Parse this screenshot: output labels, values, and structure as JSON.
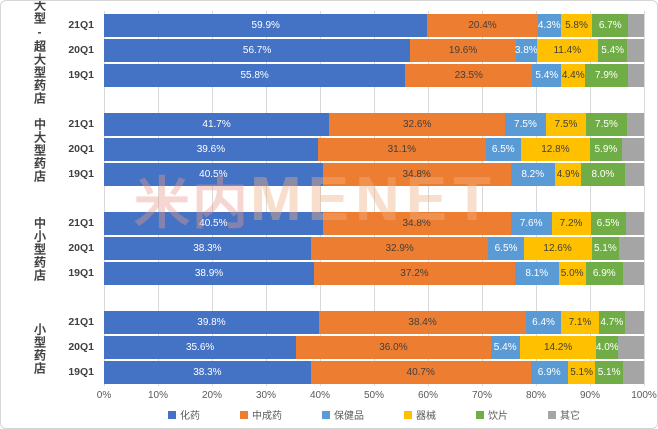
{
  "watermark": {
    "cn": "米内",
    "en": "MENET"
  },
  "chart_data": {
    "type": "bar",
    "orientation": "horizontal-stacked",
    "xlim": [
      0,
      100
    ],
    "grid": true,
    "legend_position": "bottom",
    "x_ticks": [
      "0%",
      "10%",
      "20%",
      "30%",
      "40%",
      "50%",
      "60%",
      "70%",
      "80%",
      "90%",
      "100%"
    ],
    "series": [
      {
        "name": "化药",
        "color": "#4472C4",
        "label_color": "#FFFFFF"
      },
      {
        "name": "中成药",
        "color": "#ED7D31",
        "label_color": "#404040"
      },
      {
        "name": "保健品",
        "color": "#5B9BD5",
        "label_color": "#FFFFFF"
      },
      {
        "name": "器械",
        "color": "#FFC000",
        "label_color": "#404040"
      },
      {
        "name": "饮片",
        "color": "#70AD47",
        "label_color": "#FFFFFF"
      },
      {
        "name": "其它",
        "color": "#A5A5A5",
        "label_color": "#404040"
      }
    ],
    "groups": [
      {
        "label": "大型-超大型药店",
        "rows": [
          {
            "quarter": "21Q1",
            "values": [
              59.9,
              20.4,
              4.3,
              5.8,
              6.7,
              2.9
            ],
            "labels": [
              "59.9%",
              "20.4%",
              "4.3%",
              "5.8%",
              "6.7%",
              ""
            ]
          },
          {
            "quarter": "20Q1",
            "values": [
              56.7,
              19.6,
              3.8,
              11.4,
              5.4,
              3.1
            ],
            "labels": [
              "56.7%",
              "19.6%",
              "3.8%",
              "11.4%",
              "5.4%",
              ""
            ]
          },
          {
            "quarter": "19Q1",
            "values": [
              55.8,
              23.5,
              5.4,
              4.4,
              7.9,
              3.0
            ],
            "labels": [
              "55.8%",
              "23.5%",
              "5.4%",
              "4.4%",
              "7.9%",
              ""
            ]
          }
        ]
      },
      {
        "label": "中大型药店",
        "rows": [
          {
            "quarter": "21Q1",
            "values": [
              41.7,
              32.6,
              7.5,
              7.5,
              7.5,
              3.2
            ],
            "labels": [
              "41.7%",
              "32.6%",
              "7.5%",
              "7.5%",
              "7.5%",
              ""
            ]
          },
          {
            "quarter": "20Q1",
            "values": [
              39.6,
              31.1,
              6.5,
              12.8,
              5.9,
              4.1
            ],
            "labels": [
              "39.6%",
              "31.1%",
              "6.5%",
              "12.8%",
              "5.9%",
              ""
            ]
          },
          {
            "quarter": "19Q1",
            "values": [
              40.5,
              34.8,
              8.2,
              4.9,
              8.0,
              3.6
            ],
            "labels": [
              "40.5%",
              "34.8%",
              "8.2%",
              "4.9%",
              "8.0%",
              ""
            ]
          }
        ]
      },
      {
        "label": "中小型药店",
        "rows": [
          {
            "quarter": "21Q1",
            "values": [
              40.5,
              34.8,
              7.6,
              7.2,
              6.5,
              3.4
            ],
            "labels": [
              "40.5%",
              "34.8%",
              "7.6%",
              "7.2%",
              "6.5%",
              ""
            ]
          },
          {
            "quarter": "20Q1",
            "values": [
              38.3,
              32.9,
              6.5,
              12.6,
              5.1,
              4.6
            ],
            "labels": [
              "38.3%",
              "32.9%",
              "6.5%",
              "12.6%",
              "5.1%",
              ""
            ]
          },
          {
            "quarter": "19Q1",
            "values": [
              38.9,
              37.2,
              8.1,
              5.0,
              6.9,
              3.9
            ],
            "labels": [
              "38.9%",
              "37.2%",
              "8.1%",
              "5.0%",
              "6.9%",
              ""
            ]
          }
        ]
      },
      {
        "label": "小型药店",
        "rows": [
          {
            "quarter": "21Q1",
            "values": [
              39.8,
              38.4,
              6.4,
              7.1,
              4.7,
              3.6
            ],
            "labels": [
              "39.8%",
              "38.4%",
              "6.4%",
              "7.1%",
              "4.7%",
              ""
            ]
          },
          {
            "quarter": "20Q1",
            "values": [
              35.6,
              36.0,
              5.4,
              14.2,
              4.0,
              4.8
            ],
            "labels": [
              "35.6%",
              "36.0%",
              "5.4%",
              "14.2%",
              "4.0%",
              ""
            ]
          },
          {
            "quarter": "19Q1",
            "values": [
              38.3,
              40.7,
              6.9,
              5.1,
              5.1,
              3.9
            ],
            "labels": [
              "38.3%",
              "40.7%",
              "6.9%",
              "5.1%",
              "5.1%",
              ""
            ]
          }
        ]
      }
    ]
  }
}
